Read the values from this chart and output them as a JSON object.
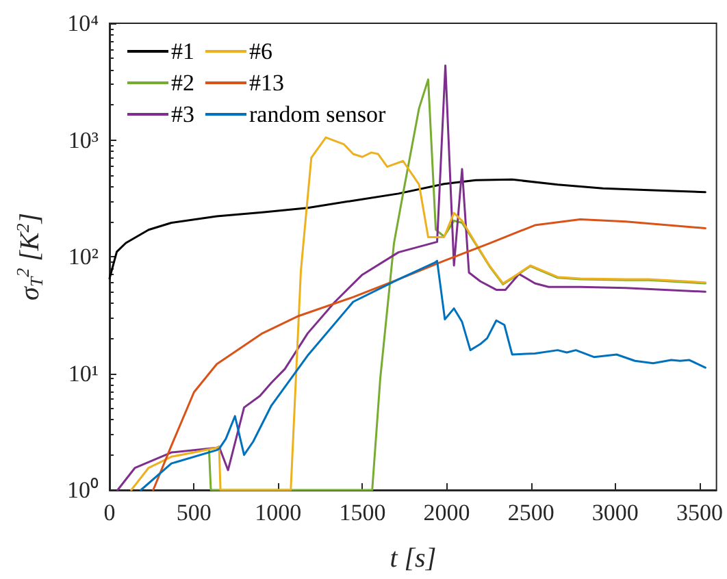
{
  "chart_data": {
    "type": "line",
    "xlabel": "t [s]",
    "ylabel": "σ$_{T}$$^{2}$ [K$^{2}$]",
    "xlim": [
      0,
      3600
    ],
    "xticks": [
      0,
      500,
      1000,
      1500,
      2000,
      2500,
      3000,
      3500
    ],
    "ylim": [
      1,
      10000
    ],
    "yticks": [
      {
        "value": 1,
        "label": "10⁰"
      },
      {
        "value": 10,
        "label": "10¹"
      },
      {
        "value": 100,
        "label": "10²"
      },
      {
        "value": 1000,
        "label": "10³"
      },
      {
        "value": 10000,
        "label": "10⁴"
      }
    ],
    "log": "y",
    "grid": false,
    "legend": "top left",
    "marker": "none",
    "line_style": "solid",
    "series": [
      {
        "name": "#1",
        "color": "#000000",
        "x": [
          0,
          43,
          97,
          232,
          367,
          636,
          906,
          1175,
          1445,
          1714,
          1984,
          2172,
          2388,
          2658,
          2927,
          3197,
          3534
        ],
        "values": [
          65,
          110,
          131,
          170,
          195,
          222,
          240,
          262,
          302,
          347,
          420,
          452,
          458,
          414,
          385,
          372,
          357
        ]
      },
      {
        "name": "#2",
        "color": "#77ac30",
        "x": [
          590,
          601,
          1558,
          1606,
          1687,
          1741,
          1836,
          1890,
          1935,
          1984,
          2043,
          2091,
          2172,
          2253,
          2334,
          2415,
          2496,
          2658,
          2792,
          3062,
          3197,
          3534
        ],
        "values": [
          2.25,
          1,
          1,
          9.1,
          130,
          347,
          1870,
          3300,
          170,
          149,
          203,
          195,
          128,
          83,
          58,
          69,
          83,
          66,
          64,
          63,
          63,
          59
        ]
      },
      {
        "name": "#3",
        "color": "#7e2f8e",
        "x": [
          48,
          151,
          367,
          636,
          650,
          703,
          798,
          892,
          960,
          1040,
          1175,
          1337,
          1499,
          1714,
          1943,
          1992,
          2043,
          2091,
          2132,
          2199,
          2294,
          2348,
          2429,
          2523,
          2604,
          2792,
          3062,
          3534
        ],
        "values": [
          1,
          1.55,
          2.1,
          2.3,
          2.35,
          1.48,
          5.1,
          6.4,
          8.3,
          10.9,
          22,
          41,
          70,
          109,
          134,
          4350,
          84,
          563,
          73,
          61.5,
          52,
          52,
          71,
          59,
          55,
          55,
          54,
          50
        ]
      },
      {
        "name": "#6",
        "color": "#edb120",
        "x": [
          129,
          232,
          367,
          501,
          636,
          650,
          658,
          1075,
          1135,
          1197,
          1283,
          1391,
          1445,
          1499,
          1553,
          1593,
          1647,
          1741,
          1836,
          1890,
          1984,
          2043,
          2091,
          2172,
          2253,
          2334,
          2415,
          2496,
          2658,
          2792,
          3062,
          3197,
          3534
        ],
        "values": [
          1,
          1.55,
          1.93,
          2.1,
          2.3,
          2.34,
          1,
          1,
          76,
          705,
          1050,
          917,
          758,
          716,
          780,
          758,
          590,
          660,
          415,
          147,
          147,
          237,
          203,
          130,
          84,
          59,
          70,
          84,
          67,
          65,
          64,
          64,
          60
        ]
      },
      {
        "name": "#13",
        "color": "#d95319",
        "x": [
          259,
          367,
          501,
          636,
          906,
          1121,
          1445,
          1714,
          1984,
          2253,
          2523,
          2792,
          3062,
          3534
        ],
        "values": [
          1,
          2.4,
          6.9,
          12,
          22,
          31,
          45,
          64,
          92,
          130,
          186,
          209,
          200,
          175
        ]
      },
      {
        "name": "random sensor",
        "color": "#0072bd",
        "x": [
          186,
          367,
          636,
          650,
          690,
          744,
          798,
          852,
          960,
          1175,
          1445,
          1714,
          1930,
          1943,
          1989,
          2043,
          2091,
          2140,
          2199,
          2240,
          2294,
          2342,
          2388,
          2523,
          2658,
          2712,
          2766,
          2873,
          3008,
          3116,
          3224,
          3332,
          3385,
          3439,
          3534
        ],
        "values": [
          1,
          1.69,
          2.2,
          2.25,
          2.75,
          4.3,
          2,
          2.6,
          5.3,
          14.2,
          41,
          64,
          89,
          92,
          29,
          36,
          27.6,
          15.8,
          17.8,
          20,
          28.4,
          26,
          14.5,
          14.8,
          15.8,
          15.1,
          15.8,
          13.8,
          14.5,
          12.8,
          12.2,
          13,
          12.8,
          13,
          11.2
        ]
      }
    ]
  }
}
